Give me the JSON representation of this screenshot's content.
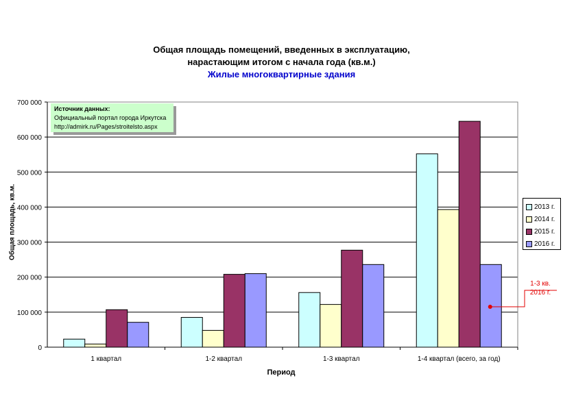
{
  "title": {
    "line1": "Общая площадь помещений, введенных в эксплуатацию,",
    "line2": "нарастающим итогом с начала года (кв.м.)",
    "line3": "Жилые многоквартирные здания"
  },
  "source": {
    "header": "Источник данных:",
    "line1": "Официальный портал города Иркутска",
    "line2": "http://admirk.ru/Pages/stroitelsto.aspx"
  },
  "callout": {
    "line1": "1-3 кв.",
    "line2": "2016 г."
  },
  "colors": {
    "s2013": "#ccffff",
    "s2014": "#ffffcc",
    "s2015": "#993366",
    "s2016": "#9999ff",
    "grid": "#000000",
    "callout": "#e30000"
  },
  "chart_data": {
    "type": "bar",
    "title": "Общая площадь помещений, введенных в эксплуатацию, нарастающим итогом с начала года (кв.м.)",
    "subtitle": "Жилые многоквартирные здания",
    "xlabel": "Период",
    "ylabel": "Общая площадь, кв.м.",
    "ylim": [
      0,
      700000
    ],
    "yticks": [
      "0",
      "100 000",
      "200 000",
      "300 000",
      "400 000",
      "500 000",
      "600 000",
      "700 000"
    ],
    "categories": [
      "1 квартал",
      "1-2 квартал",
      "1-3 квартал",
      "1-4 квартал (всего, за год)"
    ],
    "series": [
      {
        "name": "2013 г.",
        "values": [
          23000,
          85000,
          156000,
          552000
        ]
      },
      {
        "name": "2014 г.",
        "values": [
          9000,
          48000,
          122000,
          393000
        ]
      },
      {
        "name": "2015 г.",
        "values": [
          107000,
          208000,
          277000,
          645000
        ]
      },
      {
        "name": "2016 г.",
        "values": [
          71000,
          210000,
          236000,
          236000
        ]
      }
    ],
    "grid": true,
    "legend": "right"
  }
}
